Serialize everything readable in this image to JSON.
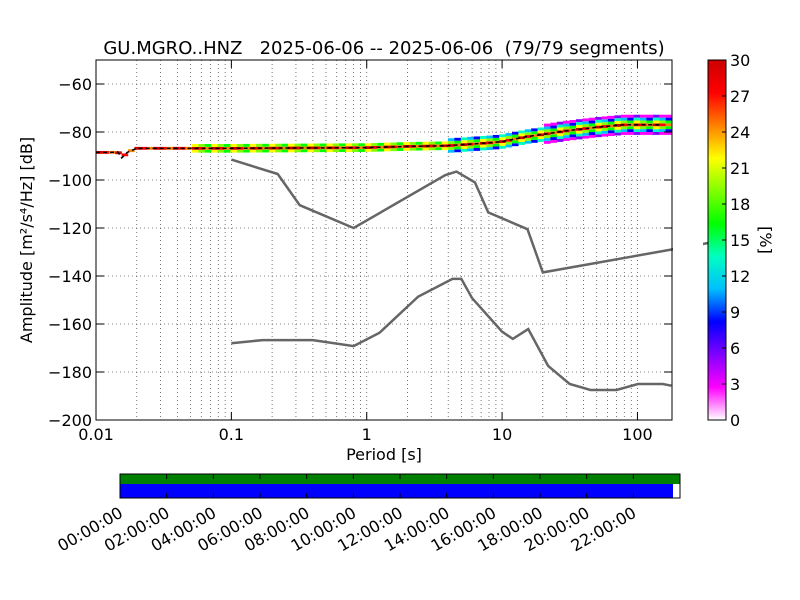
{
  "chart_data": [
    {
      "type": "line",
      "title": "GU.MGRO..HNZ   2025-06-06 -- 2025-06-06  (79/79 segments)",
      "xlabel": "Period [s]",
      "ylabel": "Amplitude [m²/s⁴/Hz] [dB]",
      "x_scale": "log",
      "xlim": [
        0.01,
        180
      ],
      "ylim": [
        -200,
        -50
      ],
      "x_ticks": [
        0.01,
        0.1,
        1,
        10,
        100
      ],
      "x_tick_labels": [
        "0.01",
        "0.1",
        "1",
        "10",
        "100"
      ],
      "y_ticks": [
        -200,
        -180,
        -160,
        -140,
        -120,
        -100,
        -80,
        -60
      ],
      "y_tick_labels": [
        "−200",
        "−180",
        "−160",
        "−140",
        "−120",
        "−100",
        "−80",
        "−60"
      ],
      "grid": true,
      "series": [
        {
          "role": "mode",
          "color": "#000000",
          "points": [
            [
              0.01,
              -88.5
            ],
            [
              0.013,
              -88.5
            ],
            [
              0.0145,
              -88.3
            ],
            [
              0.0155,
              -90.8
            ],
            [
              0.017,
              -88.5
            ],
            [
              0.02,
              -86.8
            ],
            [
              0.05,
              -86.8
            ],
            [
              0.1,
              -86.8
            ],
            [
              1,
              -86.5
            ],
            [
              2,
              -86
            ],
            [
              4,
              -85.7
            ],
            [
              6,
              -85
            ],
            [
              8,
              -84.5
            ],
            [
              10,
              -84
            ],
            [
              15,
              -82
            ],
            [
              20,
              -81
            ],
            [
              30,
              -79.5
            ],
            [
              50,
              -78
            ],
            [
              80,
              -77
            ],
            [
              150,
              -77
            ]
          ]
        },
        {
          "role": "model-high",
          "color": "#666666",
          "points": [
            [
              0.1,
              -91.5
            ],
            [
              0.22,
              -97.5
            ],
            [
              0.32,
              -110.5
            ],
            [
              0.8,
              -120
            ],
            [
              3.8,
              -98
            ],
            [
              4.6,
              -96.5
            ],
            [
              6.3,
              -101
            ],
            [
              7.9,
              -113.5
            ],
            [
              15.4,
              -120.5
            ],
            [
              20,
              -138.5
            ],
            [
              354,
              -126
            ]
          ]
        },
        {
          "role": "model-low",
          "color": "#666666",
          "points": [
            [
              0.1,
              -168
            ],
            [
              0.17,
              -166.7
            ],
            [
              0.4,
              -166.7
            ],
            [
              0.8,
              -169.2
            ],
            [
              1.24,
              -163.7
            ],
            [
              2.4,
              -148.6
            ],
            [
              4.3,
              -141.2
            ],
            [
              5,
              -141.2
            ],
            [
              6,
              -149.2
            ],
            [
              10,
              -163.2
            ],
            [
              12,
              -166.2
            ],
            [
              15.6,
              -162.1
            ],
            [
              21.9,
              -177.5
            ],
            [
              31.6,
              -185
            ],
            [
              45,
              -187.5
            ],
            [
              70,
              -187.5
            ],
            [
              101,
              -185
            ],
            [
              154,
              -185
            ],
            [
              178,
              -185.7
            ]
          ]
        }
      ],
      "colorbar": {
        "label": "[%]",
        "range": [
          0,
          30
        ],
        "ticks": [
          0,
          3,
          6,
          9,
          12,
          15,
          18,
          21,
          24,
          27,
          30
        ],
        "colors": [
          "#ffffff",
          "#ff00ff",
          "#8000ff",
          "#0000ff",
          "#00bfff",
          "#00ffbf",
          "#00ff00",
          "#80ff00",
          "#ffff00",
          "#ff8000",
          "#ff0000",
          "#cc0000"
        ]
      }
    },
    {
      "type": "timeline",
      "tick_labels": [
        "00:00:00",
        "02:00:00",
        "04:00:00",
        "06:00:00",
        "08:00:00",
        "10:00:00",
        "12:00:00",
        "14:00:00",
        "16:00:00",
        "18:00:00",
        "20:00:00",
        "22:00:00"
      ],
      "coverage": [
        {
          "color": "#008000",
          "start_fraction": 0.0,
          "end_fraction": 1.0
        },
        {
          "color": "#0000ff",
          "start_fraction": 0.0,
          "end_fraction": 0.9875
        }
      ]
    }
  ]
}
